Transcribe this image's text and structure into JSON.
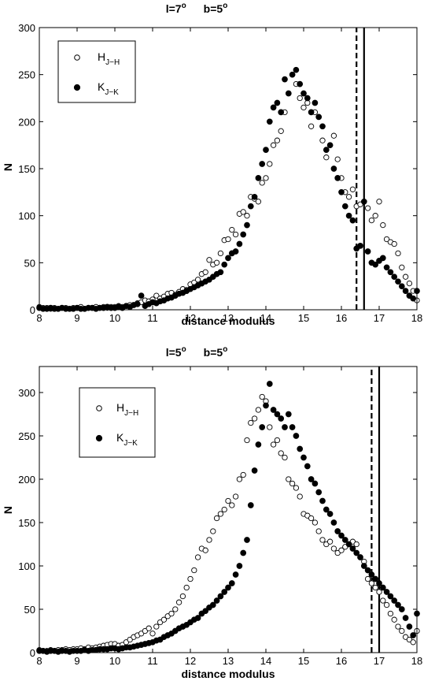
{
  "chart_data": [
    {
      "type": "scatter",
      "title": "l=7° b=5°",
      "title_parts": {
        "l": "l=7",
        "b": "b=5",
        "sup": "o"
      },
      "xlabel": "distance modulus",
      "ylabel": "N",
      "xlim": [
        8,
        18
      ],
      "ylim": [
        0,
        300
      ],
      "xticks": [
        8,
        9,
        10,
        11,
        12,
        13,
        14,
        15,
        16,
        17,
        18
      ],
      "yticks": [
        0,
        50,
        100,
        150,
        200,
        250,
        300
      ],
      "grid": false,
      "legend_position": "top-left",
      "vlines": [
        {
          "x": 16.4,
          "style": "dashed"
        },
        {
          "x": 16.6,
          "style": "solid"
        }
      ],
      "series": [
        {
          "name": "H",
          "sub": "J−H",
          "marker": "open-circle",
          "x": [
            8.0,
            8.1,
            8.2,
            8.3,
            8.4,
            8.5,
            8.6,
            8.7,
            8.8,
            8.9,
            9.0,
            9.1,
            9.2,
            9.3,
            9.4,
            9.5,
            9.6,
            9.7,
            9.8,
            9.9,
            10.0,
            10.1,
            10.2,
            10.3,
            10.4,
            10.5,
            10.6,
            10.7,
            10.8,
            10.9,
            11.0,
            11.1,
            11.2,
            11.3,
            11.4,
            11.5,
            11.6,
            11.7,
            11.8,
            11.9,
            12.0,
            12.1,
            12.2,
            12.3,
            12.4,
            12.5,
            12.6,
            12.7,
            12.8,
            12.9,
            13.0,
            13.1,
            13.2,
            13.3,
            13.4,
            13.5,
            13.6,
            13.7,
            13.8,
            13.9,
            14.0,
            14.1,
            14.2,
            14.3,
            14.4,
            14.5,
            14.6,
            14.7,
            14.8,
            14.9,
            15.0,
            15.1,
            15.2,
            15.3,
            15.4,
            15.5,
            15.6,
            15.7,
            15.8,
            15.9,
            16.0,
            16.1,
            16.2,
            16.3,
            16.4,
            16.5,
            16.6,
            16.7,
            16.8,
            16.9,
            17.0,
            17.1,
            17.2,
            17.3,
            17.4,
            17.5,
            17.6,
            17.7,
            17.8,
            17.9,
            18.0
          ],
          "y": [
            3,
            2,
            2,
            1,
            2,
            1,
            2,
            2,
            1,
            2,
            2,
            3,
            1,
            2,
            2,
            3,
            2,
            3,
            2,
            3,
            3,
            4,
            3,
            4,
            5,
            5,
            7,
            8,
            10,
            9,
            11,
            15,
            12,
            14,
            17,
            18,
            16,
            19,
            22,
            21,
            27,
            29,
            32,
            38,
            40,
            53,
            48,
            50,
            60,
            74,
            75,
            85,
            80,
            102,
            104,
            100,
            120,
            118,
            115,
            135,
            140,
            155,
            175,
            180,
            190,
            210,
            230,
            250,
            240,
            225,
            215,
            220,
            195,
            210,
            205,
            180,
            162,
            175,
            185,
            160,
            140,
            125,
            120,
            128,
            110,
            112,
            115,
            108,
            95,
            100,
            115,
            90,
            75,
            72,
            70,
            60,
            45,
            35,
            28,
            20,
            10
          ]
        },
        {
          "name": "K",
          "sub": "J−K",
          "marker": "filled-circle",
          "x": [
            8.0,
            8.1,
            8.2,
            8.3,
            8.4,
            8.5,
            8.6,
            8.7,
            8.8,
            8.9,
            9.0,
            9.1,
            9.2,
            9.3,
            9.4,
            9.5,
            9.6,
            9.7,
            9.8,
            9.9,
            10.0,
            10.1,
            10.2,
            10.3,
            10.4,
            10.5,
            10.6,
            10.7,
            10.8,
            10.9,
            11.0,
            11.1,
            11.2,
            11.3,
            11.4,
            11.5,
            11.6,
            11.7,
            11.8,
            11.9,
            12.0,
            12.1,
            12.2,
            12.3,
            12.4,
            12.5,
            12.6,
            12.7,
            12.8,
            12.9,
            13.0,
            13.1,
            13.2,
            13.3,
            13.4,
            13.5,
            13.6,
            13.7,
            13.8,
            13.9,
            14.0,
            14.1,
            14.2,
            14.3,
            14.4,
            14.5,
            14.6,
            14.7,
            14.8,
            14.9,
            15.0,
            15.1,
            15.2,
            15.3,
            15.4,
            15.5,
            15.6,
            15.7,
            15.8,
            15.9,
            16.0,
            16.1,
            16.2,
            16.3,
            16.4,
            16.5,
            16.6,
            16.7,
            16.8,
            16.9,
            17.0,
            17.1,
            17.2,
            17.3,
            17.4,
            17.5,
            17.6,
            17.7,
            17.8,
            17.9,
            18.0
          ],
          "y": [
            2,
            1,
            1,
            2,
            1,
            1,
            2,
            1,
            1,
            1,
            2,
            1,
            1,
            2,
            2,
            1,
            2,
            2,
            3,
            2,
            2,
            3,
            2,
            4,
            3,
            5,
            6,
            15,
            4,
            6,
            8,
            7,
            9,
            10,
            12,
            13,
            15,
            17,
            18,
            20,
            22,
            24,
            26,
            28,
            30,
            32,
            35,
            38,
            40,
            48,
            55,
            60,
            62,
            70,
            80,
            90,
            110,
            120,
            140,
            155,
            170,
            200,
            215,
            220,
            210,
            245,
            230,
            250,
            255,
            240,
            230,
            225,
            210,
            220,
            205,
            195,
            170,
            175,
            150,
            140,
            125,
            110,
            100,
            95,
            65,
            68,
            115,
            62,
            50,
            48,
            52,
            55,
            45,
            40,
            35,
            30,
            25,
            20,
            15,
            12,
            20
          ]
        }
      ]
    },
    {
      "type": "scatter",
      "title": "l=5° b=5°",
      "title_parts": {
        "l": "l=5",
        "b": "b=5",
        "sup": "o"
      },
      "xlabel": "distance modulus",
      "ylabel": "N",
      "xlim": [
        8,
        18
      ],
      "ylim": [
        0,
        330
      ],
      "xticks": [
        8,
        9,
        10,
        11,
        12,
        13,
        14,
        15,
        16,
        17,
        18
      ],
      "yticks": [
        0,
        50,
        100,
        150,
        200,
        250,
        300
      ],
      "grid": false,
      "legend_position": "top-left",
      "vlines": [
        {
          "x": 16.8,
          "style": "dashed"
        },
        {
          "x": 17.0,
          "style": "solid"
        }
      ],
      "series": [
        {
          "name": "H",
          "sub": "J−H",
          "marker": "open-circle",
          "x": [
            8.0,
            8.1,
            8.2,
            8.3,
            8.4,
            8.5,
            8.6,
            8.7,
            8.8,
            8.9,
            9.0,
            9.1,
            9.2,
            9.3,
            9.4,
            9.5,
            9.6,
            9.7,
            9.8,
            9.9,
            10.0,
            10.1,
            10.2,
            10.3,
            10.4,
            10.5,
            10.6,
            10.7,
            10.8,
            10.9,
            11.0,
            11.1,
            11.2,
            11.3,
            11.4,
            11.5,
            11.6,
            11.7,
            11.8,
            11.9,
            12.0,
            12.1,
            12.2,
            12.3,
            12.4,
            12.5,
            12.6,
            12.7,
            12.8,
            12.9,
            13.0,
            13.1,
            13.2,
            13.3,
            13.4,
            13.5,
            13.6,
            13.7,
            13.8,
            13.9,
            14.0,
            14.1,
            14.2,
            14.3,
            14.4,
            14.5,
            14.6,
            14.7,
            14.8,
            14.9,
            15.0,
            15.1,
            15.2,
            15.3,
            15.4,
            15.5,
            15.6,
            15.7,
            15.8,
            15.9,
            16.0,
            16.1,
            16.2,
            16.3,
            16.4,
            16.5,
            16.6,
            16.7,
            16.8,
            16.9,
            17.0,
            17.1,
            17.2,
            17.3,
            17.4,
            17.5,
            17.6,
            17.7,
            17.8,
            17.9,
            18.0
          ],
          "y": [
            3,
            2,
            2,
            3,
            2,
            3,
            3,
            4,
            3,
            4,
            4,
            5,
            4,
            6,
            5,
            6,
            7,
            8,
            9,
            10,
            10,
            8,
            9,
            12,
            15,
            18,
            20,
            22,
            25,
            28,
            22,
            30,
            35,
            38,
            42,
            45,
            50,
            58,
            65,
            75,
            85,
            95,
            110,
            120,
            118,
            130,
            140,
            155,
            160,
            165,
            175,
            170,
            180,
            200,
            205,
            245,
            265,
            270,
            280,
            295,
            290,
            260,
            240,
            245,
            230,
            225,
            200,
            195,
            190,
            180,
            160,
            158,
            155,
            150,
            140,
            130,
            125,
            128,
            120,
            115,
            118,
            122,
            125,
            128,
            125,
            110,
            105,
            85,
            80,
            75,
            70,
            60,
            55,
            45,
            38,
            30,
            25,
            18,
            15,
            12,
            25
          ]
        },
        {
          "name": "K",
          "sub": "J−K",
          "marker": "filled-circle",
          "x": [
            8.0,
            8.1,
            8.2,
            8.3,
            8.4,
            8.5,
            8.6,
            8.7,
            8.8,
            8.9,
            9.0,
            9.1,
            9.2,
            9.3,
            9.4,
            9.5,
            9.6,
            9.7,
            9.8,
            9.9,
            10.0,
            10.1,
            10.2,
            10.3,
            10.4,
            10.5,
            10.6,
            10.7,
            10.8,
            10.9,
            11.0,
            11.1,
            11.2,
            11.3,
            11.4,
            11.5,
            11.6,
            11.7,
            11.8,
            11.9,
            12.0,
            12.1,
            12.2,
            12.3,
            12.4,
            12.5,
            12.6,
            12.7,
            12.8,
            12.9,
            13.0,
            13.1,
            13.2,
            13.3,
            13.4,
            13.5,
            13.6,
            13.7,
            13.8,
            13.9,
            14.0,
            14.1,
            14.2,
            14.3,
            14.4,
            14.5,
            14.6,
            14.7,
            14.8,
            14.9,
            15.0,
            15.1,
            15.2,
            15.3,
            15.4,
            15.5,
            15.6,
            15.7,
            15.8,
            15.9,
            16.0,
            16.1,
            16.2,
            16.3,
            16.4,
            16.5,
            16.6,
            16.7,
            16.8,
            16.9,
            17.0,
            17.1,
            17.2,
            17.3,
            17.4,
            17.5,
            17.6,
            17.7,
            17.8,
            17.9,
            18.0
          ],
          "y": [
            2,
            2,
            1,
            2,
            2,
            1,
            2,
            2,
            1,
            2,
            2,
            2,
            3,
            2,
            3,
            3,
            4,
            4,
            4,
            5,
            5,
            4,
            5,
            6,
            6,
            7,
            8,
            9,
            10,
            11,
            12,
            14,
            15,
            18,
            20,
            22,
            25,
            28,
            30,
            32,
            35,
            38,
            40,
            45,
            48,
            52,
            55,
            60,
            65,
            70,
            75,
            80,
            90,
            100,
            115,
            130,
            170,
            210,
            240,
            260,
            285,
            310,
            280,
            275,
            270,
            260,
            275,
            260,
            250,
            235,
            225,
            215,
            200,
            195,
            185,
            175,
            165,
            160,
            150,
            140,
            135,
            130,
            125,
            120,
            115,
            110,
            100,
            95,
            90,
            85,
            80,
            75,
            70,
            65,
            60,
            55,
            50,
            40,
            30,
            20,
            45
          ]
        }
      ]
    }
  ]
}
